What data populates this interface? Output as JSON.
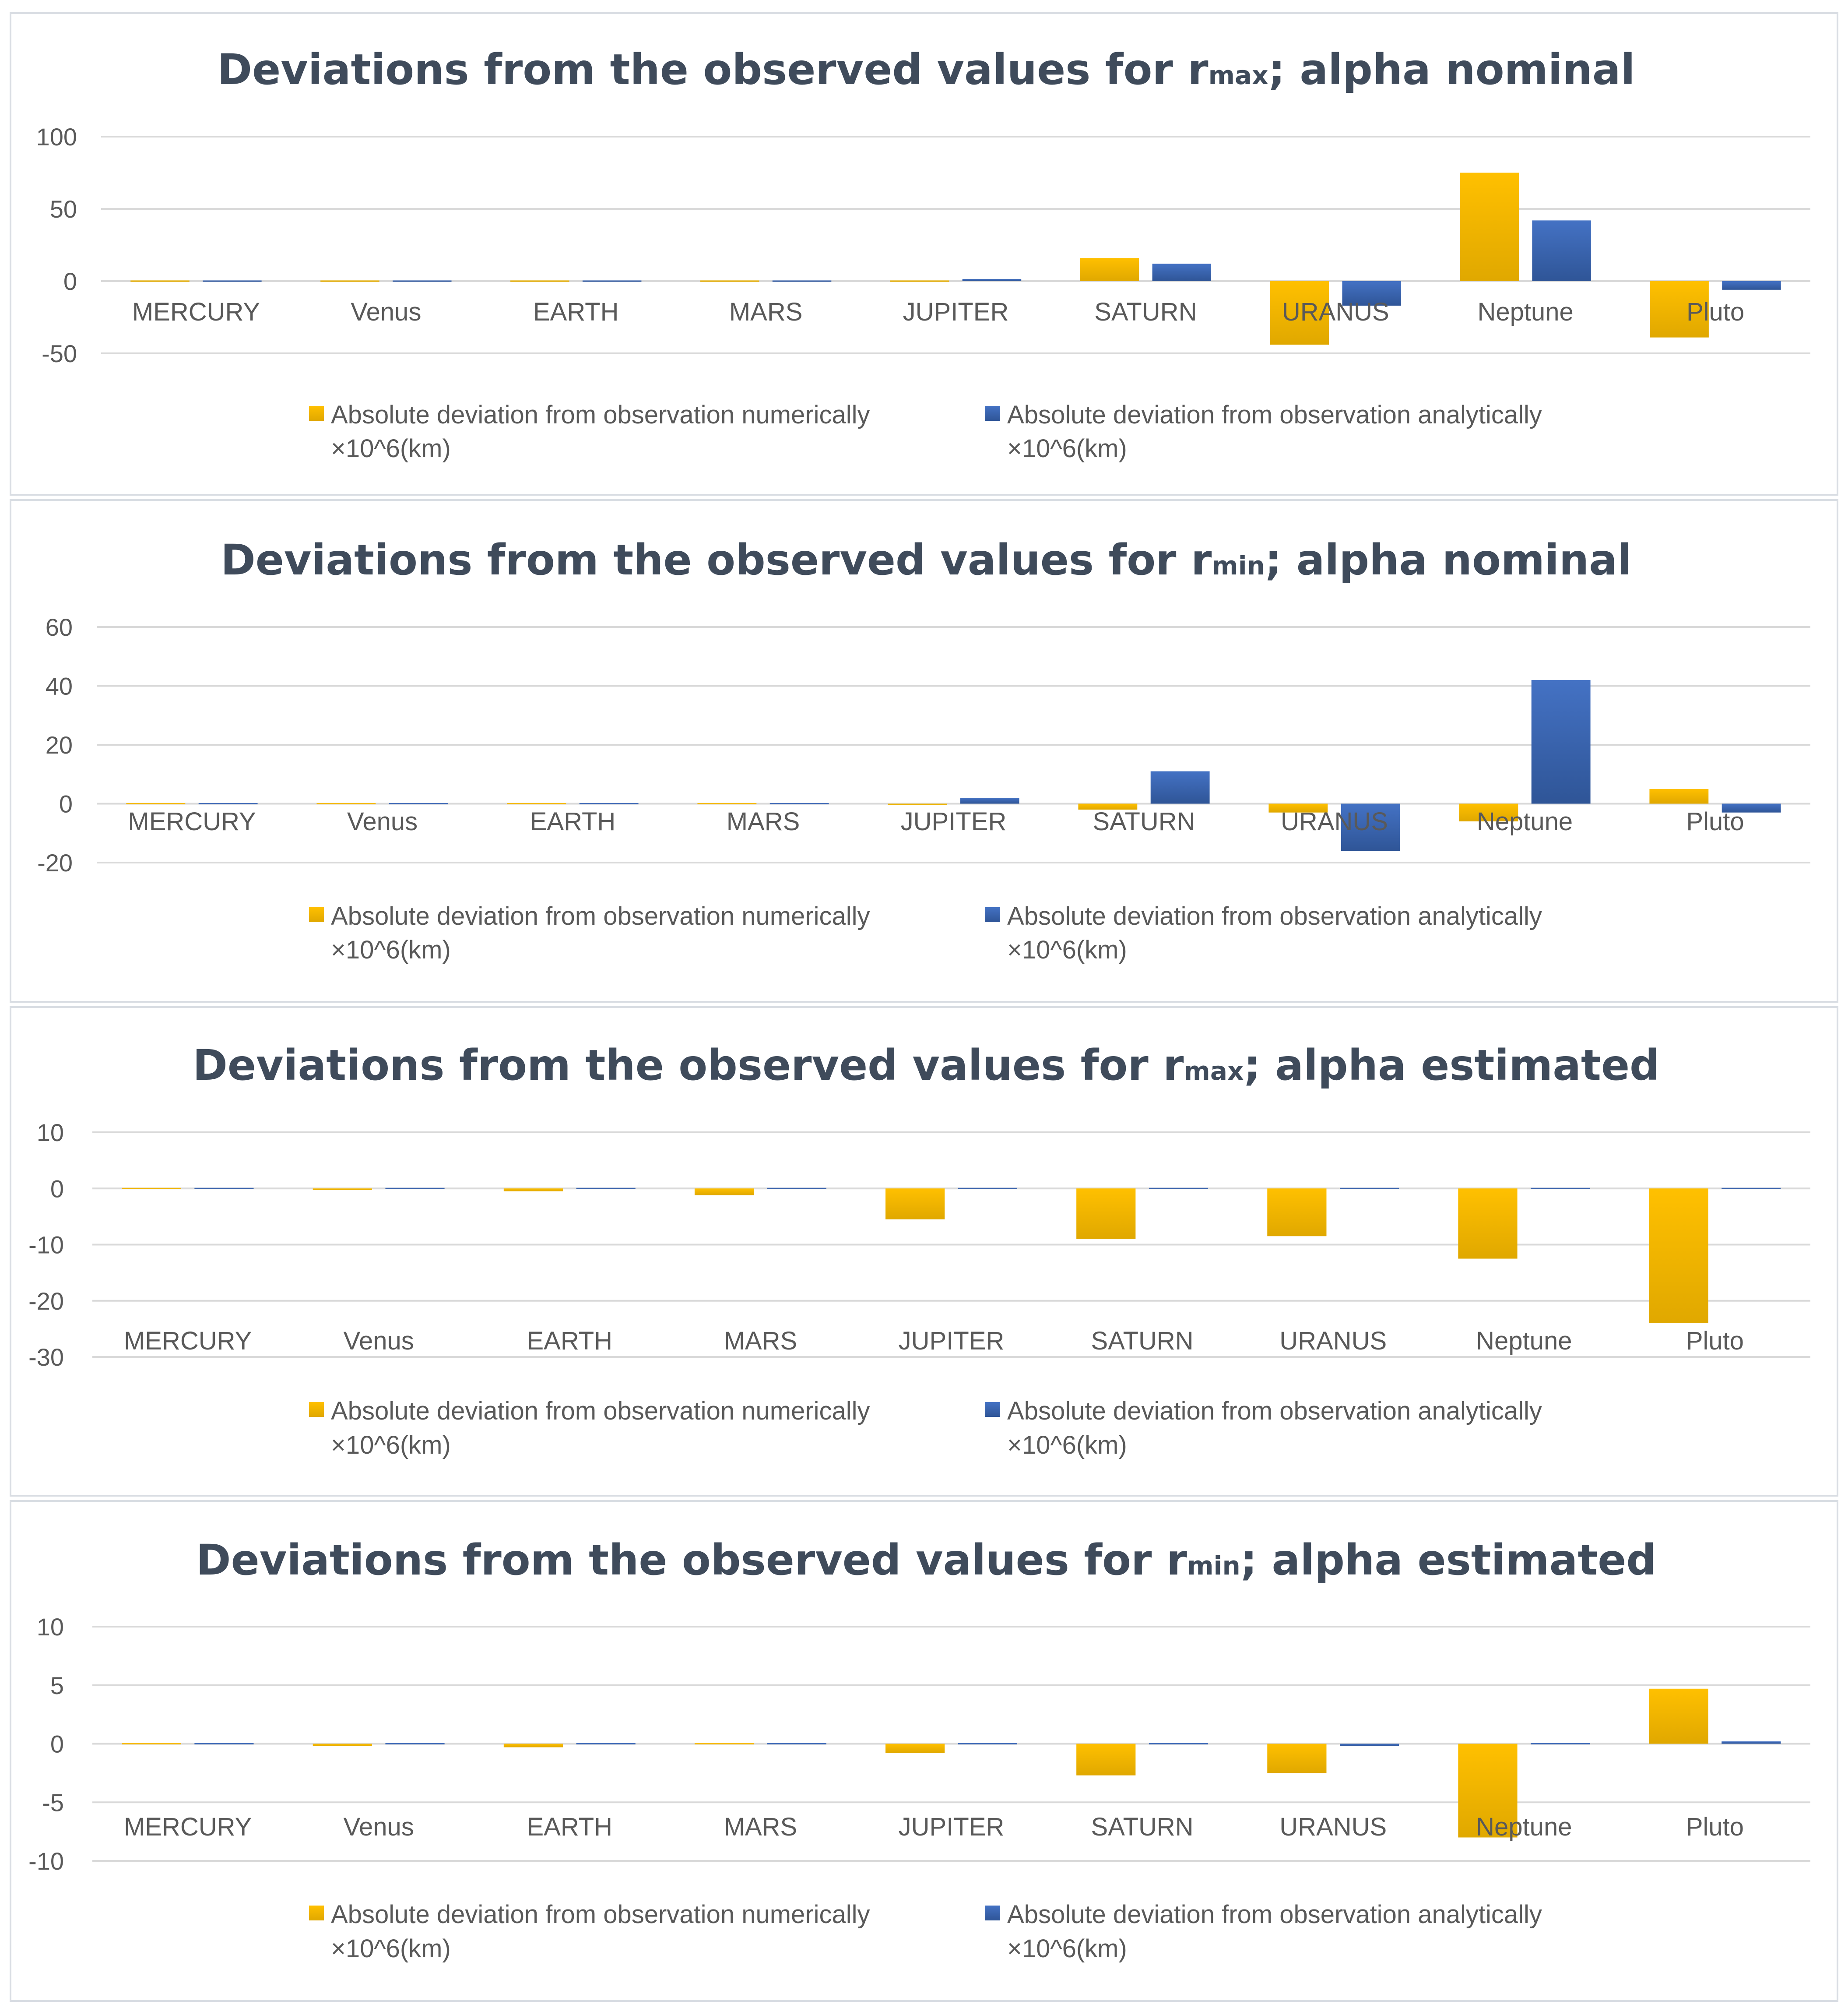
{
  "colors": {
    "numeric": "#FFC000",
    "numeric_dark": "#E0A800",
    "analytic": "#4472C4",
    "analytic_dark": "#2F5597",
    "axis_text": "#595959",
    "title": "#3f4b5b"
  },
  "chart_data": [
    {
      "type": "bar",
      "title": "Deviations from the observed values for r",
      "title_sub": "max",
      "title_suffix": "; alpha nominal",
      "ylim": [
        -50,
        100
      ],
      "yticks": [
        "100",
        "50",
        "0",
        "-50"
      ],
      "ytick_values": [
        100,
        50,
        0,
        -50
      ],
      "categories": [
        "MERCURY",
        "Venus",
        "EARTH",
        "MARS",
        "JUPITER",
        "SATURN",
        "URANUS",
        "Neptune",
        "Pluto"
      ],
      "series": [
        {
          "name": "Absolute deviation from observation numerically",
          "name_line2": "×10^6(km)",
          "color": "numeric",
          "values": [
            0,
            0,
            0,
            0,
            0.3,
            16,
            -44,
            75,
            -39
          ]
        },
        {
          "name": "Absolute deviation from  observation analytically",
          "name_line2": "×10^6(km)",
          "color": "analytic",
          "values": [
            0,
            0,
            0,
            0,
            1.5,
            12,
            -17,
            42,
            -6
          ]
        }
      ]
    },
    {
      "type": "bar",
      "title": "Deviations from the observed values for r",
      "title_sub": "min",
      "title_suffix": "; alpha nominal",
      "ylim": [
        -20,
        60
      ],
      "yticks": [
        "60",
        "40",
        "20",
        "0",
        "-20"
      ],
      "ytick_values": [
        60,
        40,
        20,
        0,
        -20
      ],
      "categories": [
        "MERCURY",
        "Venus",
        "EARTH",
        "MARS",
        "JUPITER",
        "SATURN",
        "URANUS",
        "Neptune",
        "Pluto"
      ],
      "series": [
        {
          "name": "Absolute deviation from observation numerically",
          "name_line2": "×10^6(km)",
          "color": "numeric",
          "values": [
            0,
            0,
            0,
            0,
            -0.5,
            -2,
            -3,
            -6,
            5
          ]
        },
        {
          "name": "Absolute deviation from  observation analytically",
          "name_line2": "×10^6(km)",
          "color": "analytic",
          "values": [
            0,
            0,
            0,
            0,
            2,
            11,
            -16,
            42,
            -3
          ]
        }
      ]
    },
    {
      "type": "bar",
      "title": "Deviations from the observed values for r",
      "title_sub": "max",
      "title_suffix": "; alpha estimated",
      "ylim": [
        -30,
        10
      ],
      "yticks": [
        "10",
        "0",
        "-10",
        "-20",
        "-30"
      ],
      "ytick_values": [
        10,
        0,
        -10,
        -20,
        -30
      ],
      "categories": [
        "MERCURY",
        "Venus",
        "EARTH",
        "MARS",
        "JUPITER",
        "SATURN",
        "URANUS",
        "Neptune",
        "Pluto"
      ],
      "series": [
        {
          "name": "Absolute deviation from observation numerically",
          "name_line2": "×10^6(km)",
          "color": "numeric",
          "values": [
            -0.1,
            -0.3,
            -0.5,
            -1.2,
            -5.5,
            -9,
            -8.5,
            -12.5,
            -24
          ]
        },
        {
          "name": "Absolute deviation from  observation analytically",
          "name_line2": "×10^6(km)",
          "color": "analytic",
          "values": [
            0,
            0,
            0,
            0,
            0,
            0,
            0,
            0,
            0
          ]
        }
      ]
    },
    {
      "type": "bar",
      "title": "Deviations from the observed values for r",
      "title_sub": "min",
      "title_suffix": "; alpha estimated",
      "ylim": [
        -10,
        10
      ],
      "yticks": [
        "10",
        "5",
        "0",
        "-5",
        "-10"
      ],
      "ytick_values": [
        10,
        5,
        0,
        -5,
        -10
      ],
      "categories": [
        "MERCURY",
        "Venus",
        "EARTH",
        "MARS",
        "JUPITER",
        "SATURN",
        "URANUS",
        "Neptune",
        "Pluto"
      ],
      "series": [
        {
          "name": "Absolute deviation from observation numerically",
          "name_line2": "×10^6(km)",
          "color": "numeric",
          "values": [
            0,
            -0.2,
            -0.3,
            0,
            -0.8,
            -2.7,
            -2.5,
            -8,
            4.7
          ]
        },
        {
          "name": "Absolute deviation from  observation analytically",
          "name_line2": "×10^6(km)",
          "color": "analytic",
          "values": [
            0,
            0,
            0,
            0,
            0,
            0,
            -0.2,
            0,
            0.2
          ]
        }
      ]
    }
  ]
}
